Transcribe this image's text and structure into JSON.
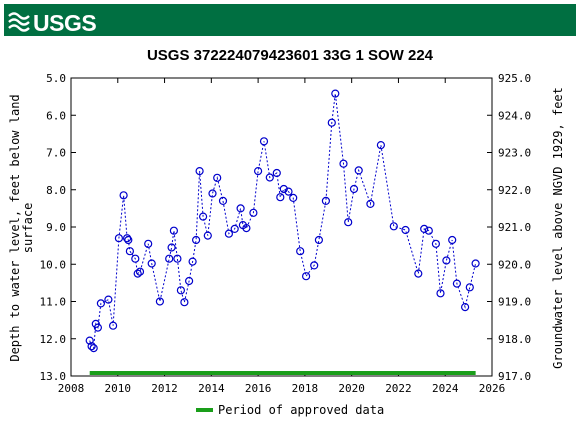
{
  "header": {
    "logo_text": "USGS",
    "bar_color": "#006f41"
  },
  "chart_data": {
    "type": "scatter",
    "title": "USGS 372224079423601 33G  1 SOW 224",
    "ylabel_left_line1": "Depth to water level, feet below land",
    "ylabel_left_line2": "surface",
    "ylabel_right": "Groundwater level above NGVD 1929, feet",
    "xlim": [
      2008,
      2026
    ],
    "ylim": [
      13.0,
      5.0
    ],
    "y2lim": [
      917.0,
      925.0
    ],
    "x_ticks": [
      "2008",
      "2010",
      "2012",
      "2014",
      "2016",
      "2018",
      "2020",
      "2022",
      "2024",
      "2026"
    ],
    "y_ticks": [
      "5.0",
      "6.0",
      "7.0",
      "8.0",
      "9.0",
      "10.0",
      "11.0",
      "12.0",
      "13.0"
    ],
    "y2_ticks": [
      "925.0",
      "924.0",
      "923.0",
      "922.0",
      "921.0",
      "920.0",
      "919.0",
      "918.0",
      "917.0"
    ],
    "series_color": "#0000cc",
    "approved_color": "#1a9e1a",
    "approved_period": [
      2008.8,
      2025.3
    ],
    "legend_label": "Period of approved data",
    "x": [
      2008.8,
      2008.88,
      2008.97,
      2009.06,
      2009.15,
      2009.28,
      2009.6,
      2009.8,
      2010.05,
      2010.25,
      2010.4,
      2010.45,
      2010.52,
      2010.75,
      2010.85,
      2010.95,
      2011.3,
      2011.45,
      2011.8,
      2012.2,
      2012.3,
      2012.4,
      2012.55,
      2012.7,
      2012.85,
      2013.05,
      2013.2,
      2013.35,
      2013.5,
      2013.65,
      2013.85,
      2014.05,
      2014.25,
      2014.5,
      2014.75,
      2015.0,
      2015.25,
      2015.35,
      2015.5,
      2015.8,
      2016.0,
      2016.25,
      2016.5,
      2016.8,
      2016.95,
      2017.1,
      2017.3,
      2017.5,
      2017.8,
      2018.05,
      2018.4,
      2018.6,
      2018.9,
      2019.15,
      2019.3,
      2019.65,
      2019.85,
      2020.1,
      2020.3,
      2020.8,
      2021.25,
      2021.8,
      2022.3,
      2022.85,
      2023.1,
      2023.3,
      2023.6,
      2023.8,
      2024.05,
      2024.3,
      2024.5,
      2024.85,
      2025.05,
      2025.3
    ],
    "values": [
      12.05,
      12.2,
      12.25,
      11.6,
      11.7,
      11.05,
      10.95,
      11.65,
      9.3,
      8.15,
      9.3,
      9.35,
      9.65,
      9.85,
      10.25,
      10.2,
      9.45,
      9.98,
      11.0,
      9.85,
      9.55,
      9.1,
      9.85,
      10.7,
      11.02,
      10.45,
      9.93,
      9.35,
      7.5,
      8.72,
      9.23,
      8.1,
      7.68,
      8.3,
      9.18,
      9.05,
      8.5,
      8.95,
      9.03,
      8.62,
      7.5,
      6.7,
      7.67,
      7.55,
      8.2,
      7.98,
      8.05,
      8.22,
      9.65,
      10.32,
      10.03,
      9.35,
      8.3,
      6.2,
      5.42,
      7.3,
      8.87,
      7.98,
      7.48,
      8.38,
      6.8,
      8.98,
      9.08,
      10.25,
      9.05,
      9.1,
      9.45,
      10.78,
      9.9,
      9.35,
      10.52,
      11.15,
      10.62,
      9.98
    ]
  }
}
